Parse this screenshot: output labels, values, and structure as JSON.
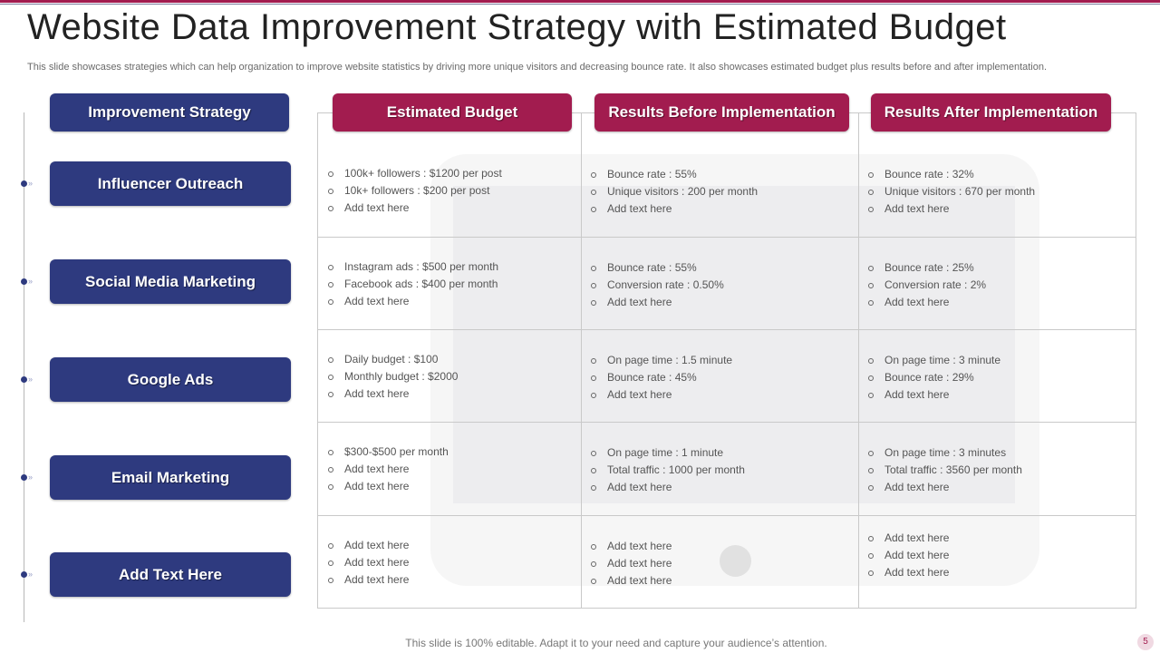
{
  "slide": {
    "title": "Website Data Improvement Strategy with Estimated Budget",
    "subtitle": "This slide showcases strategies which can help organization to improve website statistics by driving more unique visitors and decreasing bounce rate. It also showcases estimated budget plus results before and after implementation.",
    "footer": "This slide is 100% editable. Adapt it to your need and capture your audience’s attention.",
    "page_number": "5"
  },
  "colors": {
    "navy": "#2e3a7f",
    "crimson": "#a21c4f"
  },
  "headers": {
    "strategy": "Improvement Strategy",
    "budget": "Estimated Budget",
    "before": "Results Before Implementation",
    "after": "Results After Implementation"
  },
  "rows": [
    {
      "strategy": "Influencer Outreach",
      "budget": [
        "100k+ followers : $1200 per post",
        "10k+ followers :  $200 per post",
        "Add text here"
      ],
      "before": [
        "Bounce rate : 55%",
        "Unique visitors : 200 per month",
        "Add text here"
      ],
      "after": [
        "Bounce rate : 32%",
        "Unique visitors : 670 per month",
        "Add text here"
      ]
    },
    {
      "strategy": "Social Media Marketing",
      "budget": [
        "Instagram ads : $500 per month",
        "Facebook ads : $400 per month",
        "Add text here"
      ],
      "before": [
        "Bounce rate : 55%",
        "Conversion rate : 0.50%",
        "Add text here"
      ],
      "after": [
        "Bounce rate : 25%",
        "Conversion rate :  2%",
        "Add text here"
      ]
    },
    {
      "strategy": "Google Ads",
      "budget": [
        "Daily budget : $100",
        "Monthly budget : $2000",
        "Add text here"
      ],
      "before": [
        "On page time : 1.5 minute",
        "Bounce rate :   45%",
        "Add text here"
      ],
      "after": [
        "On page time :  3 minute",
        "Bounce rate :   29%",
        "Add text here"
      ]
    },
    {
      "strategy": "Email Marketing",
      "budget": [
        "$300-$500 per month",
        "Add text here",
        "Add text here"
      ],
      "before": [
        "On page time :  1 minute",
        "Total traffic : 1000 per month",
        "Add text here"
      ],
      "after": [
        "On page time :  3 minutes",
        "Total traffic : 3560 per month",
        "Add text here"
      ]
    },
    {
      "strategy": "Add Text Here",
      "budget": [
        "Add text here",
        "Add text here",
        "Add text here"
      ],
      "before": [
        "Add text here",
        "Add text here",
        "Add text here"
      ],
      "after": [
        "Add text here",
        "Add text here",
        "Add text here"
      ]
    }
  ]
}
